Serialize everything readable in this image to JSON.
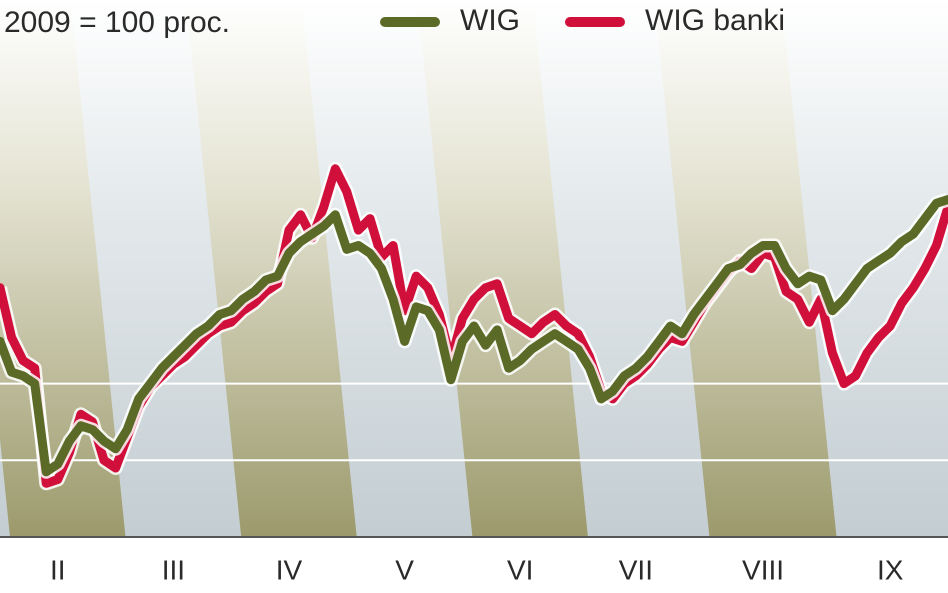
{
  "chart_data": {
    "type": "line",
    "subtitle": "2009 = 100 proc.",
    "x": [
      null,
      null,
      null,
      null,
      null,
      "II",
      null,
      null,
      null,
      null,
      null,
      null,
      null,
      null,
      null,
      "III",
      null,
      null,
      null,
      null,
      null,
      null,
      null,
      null,
      null,
      "IV",
      null,
      null,
      null,
      null,
      null,
      null,
      null,
      null,
      null,
      "V",
      null,
      null,
      null,
      null,
      null,
      null,
      null,
      null,
      null,
      "VI",
      null,
      null,
      null,
      null,
      null,
      null,
      null,
      null,
      null,
      "VII",
      null,
      null,
      null,
      null,
      null,
      null,
      null,
      null,
      null,
      null,
      "VIII",
      null,
      null,
      null,
      null,
      null,
      null,
      null,
      null,
      null,
      null,
      "IX",
      null,
      null,
      null,
      null,
      null
    ],
    "series": [
      {
        "name": "WIG banki",
        "color": "#d0103a",
        "values": [
          125,
          112,
          106,
          104,
          74,
          75,
          82,
          92,
          90,
          80,
          78,
          86,
          94,
          99,
          102,
          105,
          107,
          110,
          113,
          115,
          116,
          119,
          121,
          124,
          126,
          140,
          144,
          138,
          146,
          156,
          150,
          140,
          143,
          133,
          136,
          119,
          128,
          125,
          118,
          106,
          117,
          122,
          125,
          126,
          117,
          115,
          113,
          116,
          118,
          115,
          113,
          107,
          98,
          96,
          100,
          102,
          105,
          109,
          112,
          111,
          116,
          121,
          125,
          129,
          132,
          130,
          134,
          133,
          124,
          122,
          116,
          122,
          108,
          100,
          102,
          108,
          112,
          115,
          121,
          125,
          130,
          136,
          146
        ]
      },
      {
        "name": "WIG",
        "color": "#5b6b27",
        "values": [
          111,
          103,
          102,
          100,
          77,
          79,
          85,
          89,
          88,
          85,
          83,
          88,
          96,
          100,
          104,
          107,
          110,
          113,
          115,
          118,
          119,
          122,
          124,
          127,
          128,
          134,
          137,
          139,
          141,
          144,
          135,
          136,
          134,
          130,
          122,
          111,
          120,
          119,
          114,
          101,
          111,
          115,
          110,
          114,
          104,
          106,
          109,
          111,
          113,
          111,
          109,
          104,
          96,
          98,
          102,
          104,
          107,
          111,
          115,
          113,
          118,
          122,
          126,
          130,
          131,
          134,
          136,
          136,
          130,
          126,
          128,
          127,
          119,
          122,
          126,
          130,
          132,
          134,
          137,
          139,
          143,
          147,
          148
        ]
      }
    ],
    "ylim": [
      60,
      200
    ],
    "yticks": [
      80,
      100
    ],
    "grid": true
  }
}
